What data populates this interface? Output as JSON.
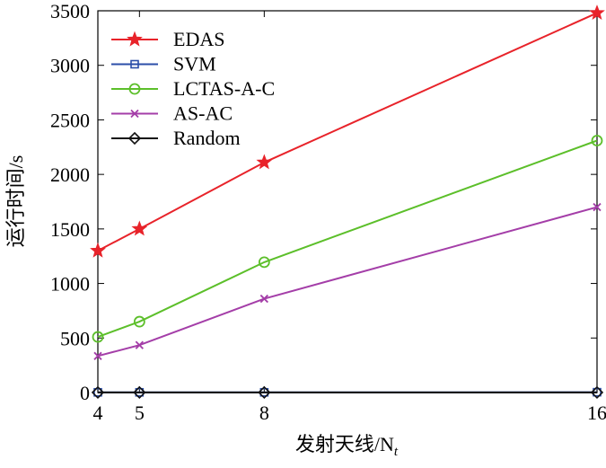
{
  "chart_data": {
    "type": "line",
    "xlabel": "发射天线/N",
    "xlabel_sub": "t",
    "ylabel": "运行时间/s",
    "x": [
      4,
      5,
      8,
      16
    ],
    "xlim": [
      4,
      16
    ],
    "ylim": [
      0,
      3500
    ],
    "xticks": [
      "4",
      "5",
      "8",
      "16"
    ],
    "yticks": [
      "0",
      "500",
      "1000",
      "1500",
      "2000",
      "2500",
      "3000",
      "3500"
    ],
    "grid": false,
    "legend_position": "top-left",
    "series": [
      {
        "name": "EDAS",
        "values": [
          1300,
          1500,
          2110,
          3480
        ],
        "color": "#e8232a",
        "marker": "star"
      },
      {
        "name": "SVM",
        "values": [
          2,
          2,
          2,
          3
        ],
        "color": "#2b4ea8",
        "marker": "square"
      },
      {
        "name": "LCTAS-A-C",
        "values": [
          510,
          650,
          1195,
          2310
        ],
        "color": "#5cbf2a",
        "marker": "circle"
      },
      {
        "name": "AS-AC",
        "values": [
          335,
          435,
          860,
          1700
        ],
        "color": "#a43ea8",
        "marker": "x"
      },
      {
        "name": "Random",
        "values": [
          1,
          1,
          1,
          1
        ],
        "color": "#111111",
        "marker": "diamond"
      }
    ]
  }
}
